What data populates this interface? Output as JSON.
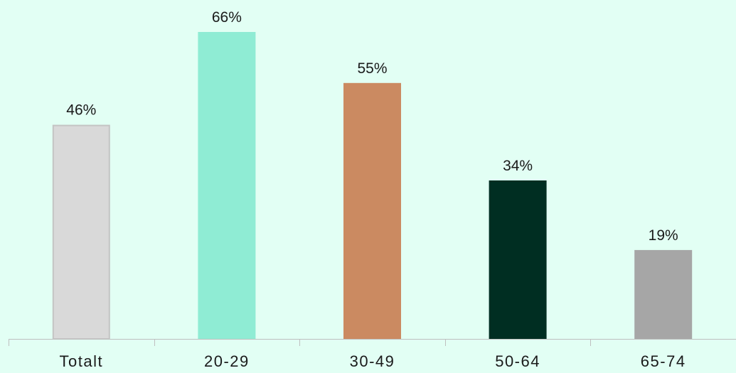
{
  "chart_data": {
    "type": "bar",
    "categories": [
      "Totalt",
      "20-29",
      "30-49",
      "50-64",
      "65-74"
    ],
    "values": [
      46,
      66,
      55,
      34,
      19
    ],
    "value_labels": [
      "46%",
      "66%",
      "55%",
      "34%",
      "19%"
    ],
    "unit": "%",
    "ylim": [
      0,
      70
    ],
    "bar_colors": [
      "#d9d9d9",
      "#8fecd4",
      "#cb8a61",
      "#002e22",
      "#a6a6a6"
    ],
    "bar_borders": [
      "#c4c4c4",
      "#8fecd4",
      "#cb8a61",
      "#002e22",
      "#a6a6a6"
    ],
    "grid": false,
    "legend": "none",
    "background": "#e2fff4",
    "axis_color": "#bfbfbf"
  }
}
